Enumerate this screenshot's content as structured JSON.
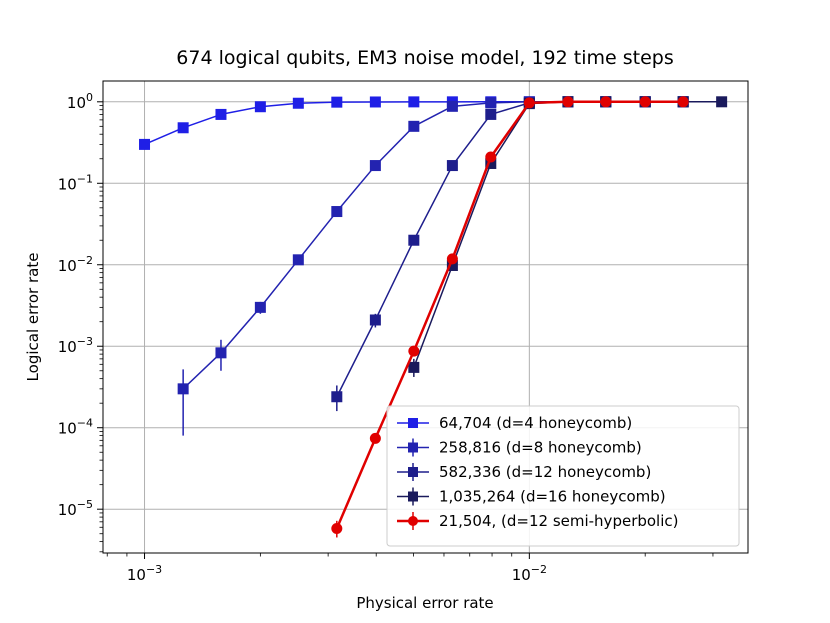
{
  "chart_data": {
    "type": "line",
    "title": "674 logical qubits, EM3 noise model, 192 time steps",
    "xlabel": "Physical error rate",
    "ylabel": "Logical error rate",
    "xscale": "log",
    "yscale": "log",
    "xlim": [
      0.00078,
      0.037
    ],
    "ylim": [
      2.9e-06,
      1.8
    ],
    "x_ticks": [
      {
        "value": 0.001,
        "base": "10",
        "exp": "−3"
      },
      {
        "value": 0.01,
        "base": "10",
        "exp": "−2"
      }
    ],
    "y_ticks": [
      {
        "value": 1e-05,
        "base": "10",
        "exp": "−5"
      },
      {
        "value": 0.0001,
        "base": "10",
        "exp": "−4"
      },
      {
        "value": 0.001,
        "base": "10",
        "exp": "−3"
      },
      {
        "value": 0.01,
        "base": "10",
        "exp": "−2"
      },
      {
        "value": 0.1,
        "base": "10",
        "exp": "−1"
      },
      {
        "value": 1,
        "base": "10",
        "exp": "0"
      }
    ],
    "grid": true,
    "legend_position": "lower-right",
    "series": [
      {
        "name": "64,704 (d=4 honeycomb)",
        "color": "#1f1fe6",
        "marker": "square",
        "x": [
          0.001,
          0.00126,
          0.00158,
          0.002,
          0.00251,
          0.00316,
          0.00398,
          0.00501,
          0.00631,
          0.00794,
          0.01,
          0.0126,
          0.0158,
          0.02,
          0.0251
        ],
        "y": [
          0.3,
          0.48,
          0.7,
          0.87,
          0.96,
          0.99,
          0.995,
          0.998,
          0.999,
          1,
          1,
          1,
          1,
          1,
          1
        ]
      },
      {
        "name": "258,816 (d=8 honeycomb)",
        "color": "#2323b0",
        "marker": "square",
        "x": [
          0.00126,
          0.00158,
          0.002,
          0.00251,
          0.00316,
          0.00398,
          0.00501,
          0.00631,
          0.00794,
          0.01,
          0.0126,
          0.0158,
          0.02,
          0.0251
        ],
        "y": [
          0.0003,
          0.00083,
          0.003,
          0.0115,
          0.045,
          0.165,
          0.5,
          0.88,
          0.97,
          1,
          1,
          1,
          1,
          1
        ],
        "err_low": [
          8e-05,
          0.0005,
          0.0025,
          null,
          null,
          null,
          null,
          null,
          null,
          null,
          null,
          null,
          null,
          null
        ],
        "err_high": [
          0.00052,
          0.0012,
          0.0035,
          null,
          null,
          null,
          null,
          null,
          null,
          null,
          null,
          null,
          null,
          null
        ]
      },
      {
        "name": "582,336 (d=12 honeycomb)",
        "color": "#1e1e8c",
        "marker": "square",
        "x": [
          0.00316,
          0.00398,
          0.00501,
          0.00631,
          0.00794,
          0.01,
          0.0126,
          0.0158,
          0.02,
          0.0251
        ],
        "y": [
          0.00024,
          0.0021,
          0.02,
          0.165,
          0.7,
          0.97,
          1,
          1,
          1,
          1
        ],
        "err_low": [
          0.00016,
          0.0017,
          null,
          null,
          null,
          null,
          null,
          null,
          null,
          null
        ],
        "err_high": [
          0.00033,
          0.0025,
          null,
          null,
          null,
          null,
          null,
          null,
          null,
          null
        ]
      },
      {
        "name": "1,035,264 (d=16 honeycomb)",
        "color": "#1a1a5c",
        "marker": "square",
        "x": [
          0.00501,
          0.00631,
          0.00794,
          0.01,
          0.0126,
          0.0158,
          0.02,
          0.0251,
          0.0316
        ],
        "y": [
          0.00055,
          0.0098,
          0.175,
          0.95,
          1,
          1,
          1,
          1,
          1
        ],
        "err_low": [
          0.00042,
          0.0086,
          null,
          null,
          null,
          null,
          null,
          null,
          null
        ],
        "err_high": [
          0.0007,
          0.011,
          null,
          null,
          null,
          null,
          null,
          null,
          null
        ]
      },
      {
        "name": "21,504, (d=12 semi-hyperbolic)",
        "color": "#e00000",
        "marker": "circle",
        "x": [
          0.00316,
          0.00398,
          0.00501,
          0.00631,
          0.00794,
          0.01,
          0.0126,
          0.0158,
          0.02,
          0.0251
        ],
        "y": [
          5.8e-06,
          7.4e-05,
          0.00087,
          0.0118,
          0.21,
          0.97,
          1,
          1,
          1,
          1
        ],
        "err_low": [
          4.5e-06,
          6.8e-05,
          0.00078,
          null,
          null,
          null,
          null,
          null,
          null,
          null
        ],
        "err_high": [
          7.2e-06,
          8e-05,
          0.00096,
          null,
          null,
          null,
          null,
          null,
          null,
          null
        ]
      }
    ]
  }
}
